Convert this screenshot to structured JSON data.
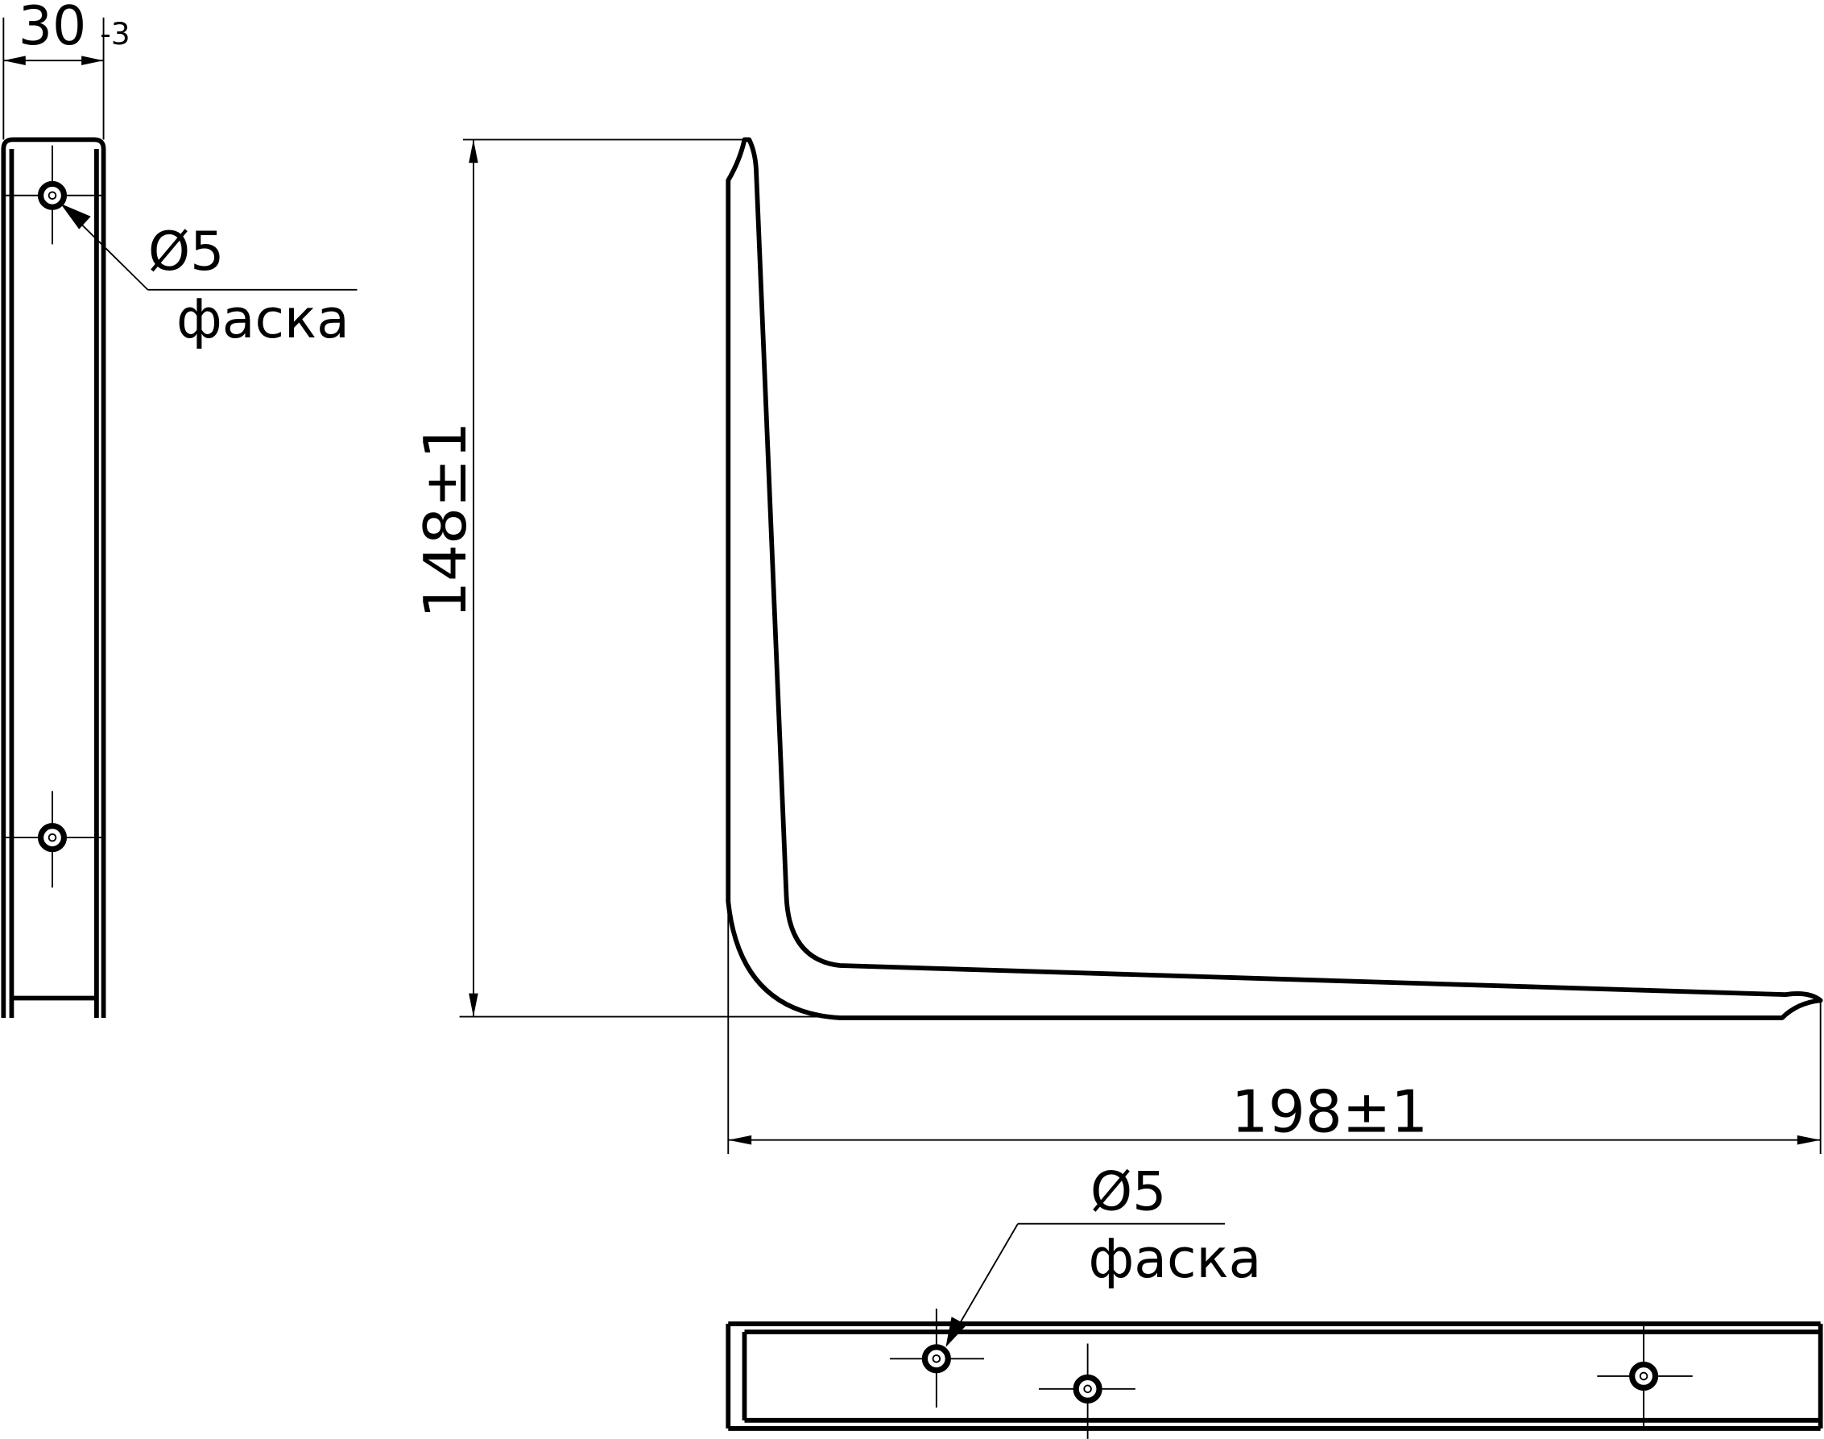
{
  "dimensions": {
    "width": {
      "value": "30",
      "tolerance": "-3"
    },
    "height": "148±1",
    "length": "198±1"
  },
  "callouts": [
    {
      "diameter": "Ø5",
      "note": "фаска"
    },
    {
      "diameter": "Ø5",
      "note": "фаска"
    }
  ]
}
